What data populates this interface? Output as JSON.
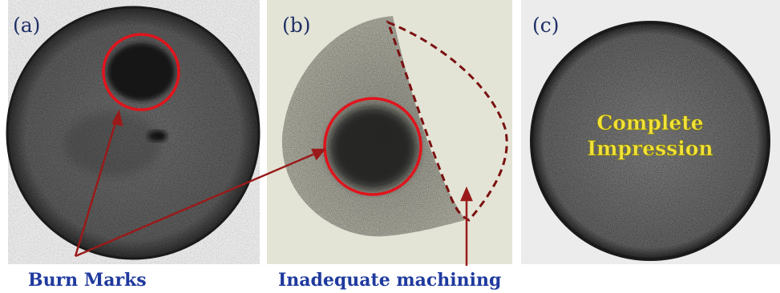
{
  "panels": [
    {
      "label": "(a)"
    },
    {
      "label": "(b)"
    },
    {
      "label": "(c)",
      "overlay_text": [
        "Complete",
        "Impression"
      ]
    }
  ],
  "captions": {
    "left": "Burn Marks",
    "middle": "Inadequate machining"
  },
  "colors": {
    "highlight_circle": "#e0141c",
    "arrow": "#9a1a1a",
    "dashed_outline": "#7a1010",
    "caption_text": "#1f3a9e",
    "panel_label": "#1e2f66",
    "overlay_text": "#f2e23a"
  }
}
